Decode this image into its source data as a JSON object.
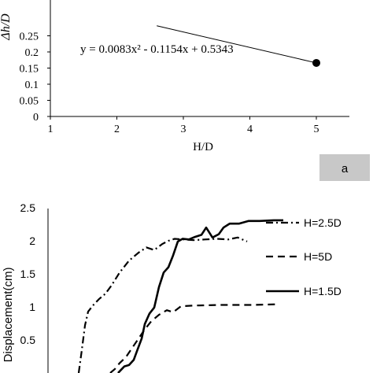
{
  "chart_data": [
    {
      "type": "scatter",
      "panel_label": "a",
      "xlabel": "H/D",
      "ylabel": "Δh/D",
      "xlim": [
        1,
        5.5
      ],
      "ylim": [
        0,
        0.25
      ],
      "x_ticks": [
        "1",
        "2",
        "3",
        "4",
        "5"
      ],
      "y_ticks": [
        "0",
        "0.05",
        "0.1",
        "0.15",
        "0.2",
        "0.25"
      ],
      "equation": "y = 0.0083x² - 0.1154x + 0.5343",
      "points": [
        {
          "x": 5,
          "y": 0.166
        }
      ],
      "trendline": [
        {
          "x": 2.6,
          "y": 0.281
        },
        {
          "x": 5,
          "y": 0.166
        }
      ],
      "grid": false
    },
    {
      "type": "line",
      "ylabel": "Displacement(cm)",
      "ylim": [
        0,
        2.5
      ],
      "y_ticks": [
        "0.5",
        "1",
        "1.5",
        "2",
        "2.5"
      ],
      "legend_position": "right",
      "series": [
        {
          "name": "H=2.5D",
          "dash": "dashdot",
          "points": [
            [
              100,
              0.0
            ],
            [
              104,
              0.35
            ],
            [
              108,
              0.72
            ],
            [
              112,
              0.93
            ],
            [
              118,
              1.02
            ],
            [
              126,
              1.12
            ],
            [
              134,
              1.2
            ],
            [
              142,
              1.33
            ],
            [
              152,
              1.52
            ],
            [
              164,
              1.7
            ],
            [
              176,
              1.82
            ],
            [
              186,
              1.9
            ],
            [
              196,
              1.86
            ],
            [
              206,
              1.95
            ],
            [
              214,
              2.0
            ],
            [
              222,
              2.03
            ],
            [
              234,
              2.02
            ],
            [
              246,
              2.01
            ],
            [
              260,
              2.02
            ],
            [
              276,
              2.03
            ],
            [
              290,
              2.02
            ],
            [
              302,
              2.05
            ],
            [
              314,
              1.99
            ]
          ]
        },
        {
          "name": "H=5D",
          "dash": "dashed",
          "points": [
            [
              140,
              0.0
            ],
            [
              146,
              0.06
            ],
            [
              152,
              0.15
            ],
            [
              160,
              0.24
            ],
            [
              168,
              0.38
            ],
            [
              176,
              0.52
            ],
            [
              184,
              0.66
            ],
            [
              192,
              0.78
            ],
            [
              202,
              0.88
            ],
            [
              212,
              0.95
            ],
            [
              220,
              0.92
            ],
            [
              230,
              1.01
            ],
            [
              246,
              1.02
            ],
            [
              280,
              1.03
            ],
            [
              320,
              1.03
            ],
            [
              354,
              1.04
            ]
          ]
        },
        {
          "name": "H=1.5D",
          "dash": "solid",
          "points": [
            [
              150,
              0.0
            ],
            [
              154,
              0.05
            ],
            [
              158,
              0.1
            ],
            [
              164,
              0.12
            ],
            [
              170,
              0.2
            ],
            [
              174,
              0.33
            ],
            [
              180,
              0.52
            ],
            [
              184,
              0.74
            ],
            [
              190,
              0.9
            ],
            [
              196,
              0.99
            ],
            [
              202,
              1.3
            ],
            [
              208,
              1.52
            ],
            [
              214,
              1.6
            ],
            [
              220,
              1.78
            ],
            [
              226,
              1.99
            ],
            [
              232,
              2.03
            ],
            [
              240,
              2.02
            ],
            [
              248,
              2.06
            ],
            [
              256,
              2.09
            ],
            [
              262,
              2.2
            ],
            [
              270,
              2.05
            ],
            [
              278,
              2.1
            ],
            [
              284,
              2.2
            ],
            [
              292,
              2.26
            ],
            [
              304,
              2.26
            ],
            [
              316,
              2.3
            ],
            [
              330,
              2.3
            ],
            [
              348,
              2.31
            ],
            [
              360,
              2.31
            ]
          ]
        }
      ],
      "grid": false
    }
  ]
}
